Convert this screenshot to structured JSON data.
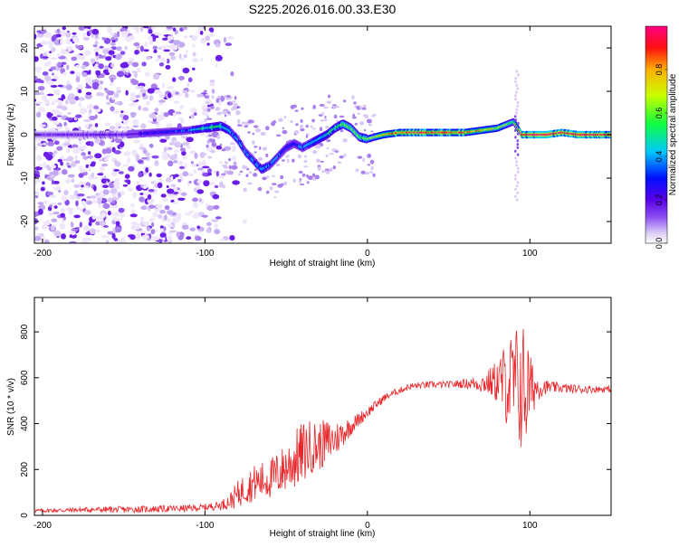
{
  "colors": {
    "background": "#ffffff",
    "axis": "#000000",
    "snr_line": "#e8262a",
    "noise_scatter": "#b8a0f0",
    "colormap": [
      "#ffffff",
      "#d9c8f6",
      "#8a4ff0",
      "#5a00e8",
      "#0010ff",
      "#00c8ff",
      "#10ff40",
      "#c8ff00",
      "#ffb000",
      "#ff1010",
      "#ff0080"
    ]
  },
  "chart_data": [
    {
      "type": "heatmap",
      "title": "S225.2026.016.00.33.E30",
      "xlabel": "Height of straight line (km)",
      "ylabel": "Frequency (Hz)",
      "xlim": [
        -205,
        150
      ],
      "ylim": [
        -25,
        25
      ],
      "xticks": [
        -200,
        -100,
        0,
        100
      ],
      "yticks": [
        -20,
        -10,
        0,
        10,
        20
      ],
      "colorbar": {
        "label": "Normalized spectral amplitude",
        "range": [
          0,
          1
        ],
        "ticks": [
          0.0,
          0.2,
          0.4,
          0.6,
          0.8
        ]
      },
      "ridge": {
        "description": "dominant frequency ridge (Hz) vs height (km)",
        "x": [
          -205,
          -150,
          -110,
          -100,
          -90,
          -85,
          -80,
          -75,
          -70,
          -65,
          -60,
          -55,
          -50,
          -45,
          -40,
          -35,
          -30,
          -25,
          -20,
          -15,
          -10,
          -5,
          0,
          10,
          20,
          40,
          60,
          80,
          90,
          95,
          100,
          110,
          120,
          130,
          150
        ],
        "freq": [
          0,
          0,
          1,
          1.5,
          2,
          1,
          -1,
          -4,
          -6,
          -8,
          -7,
          -5,
          -3,
          -2,
          -3,
          -2,
          -1,
          0,
          1.5,
          2.5,
          1.5,
          -0.5,
          -1,
          0,
          0.5,
          0.5,
          0.5,
          1.5,
          3,
          0,
          0,
          0,
          0.5,
          0,
          0
        ],
        "amplitude": [
          0.12,
          0.14,
          0.3,
          0.45,
          0.45,
          0.35,
          0.3,
          0.3,
          0.3,
          0.35,
          0.3,
          0.3,
          0.25,
          0.25,
          0.3,
          0.35,
          0.4,
          0.4,
          0.45,
          0.55,
          0.5,
          0.5,
          0.55,
          0.7,
          0.8,
          0.85,
          0.8,
          0.6,
          0.5,
          0.9,
          0.95,
          0.95,
          0.9,
          0.95,
          0.9
        ]
      }
    },
    {
      "type": "line",
      "xlabel": "Height of straight line (km)",
      "ylabel": "SNR (10 * v/v)",
      "xlim": [
        -205,
        150
      ],
      "ylim": [
        0,
        950
      ],
      "xticks": [
        -200,
        -100,
        0,
        100
      ],
      "yticks": [
        0,
        200,
        400,
        600,
        800
      ],
      "series": [
        {
          "name": "SNR",
          "x": [
            -205,
            -190,
            -170,
            -150,
            -130,
            -110,
            -100,
            -90,
            -85,
            -80,
            -75,
            -70,
            -65,
            -60,
            -55,
            -50,
            -45,
            -40,
            -35,
            -30,
            -25,
            -20,
            -15,
            -10,
            -5,
            0,
            5,
            10,
            15,
            20,
            25,
            30,
            40,
            50,
            60,
            70,
            75,
            80,
            85,
            90,
            95,
            98,
            100,
            105,
            110,
            120,
            130,
            140,
            150
          ],
          "y": [
            20,
            22,
            25,
            25,
            28,
            30,
            35,
            45,
            60,
            90,
            120,
            140,
            150,
            160,
            180,
            210,
            240,
            270,
            300,
            300,
            320,
            330,
            360,
            390,
            420,
            450,
            480,
            510,
            530,
            545,
            560,
            565,
            570,
            570,
            575,
            575,
            580,
            585,
            580,
            570,
            560,
            550,
            555,
            560,
            560,
            555,
            550,
            550,
            550
          ],
          "noise": [
            8,
            10,
            12,
            15,
            15,
            15,
            15,
            20,
            35,
            60,
            70,
            80,
            85,
            90,
            100,
            110,
            130,
            140,
            120,
            110,
            100,
            80,
            60,
            40,
            30,
            25,
            20,
            18,
            15,
            15,
            15,
            15,
            15,
            15,
            20,
            40,
            60,
            100,
            180,
            250,
            300,
            280,
            150,
            60,
            30,
            20,
            20,
            15,
            15
          ]
        }
      ]
    }
  ]
}
